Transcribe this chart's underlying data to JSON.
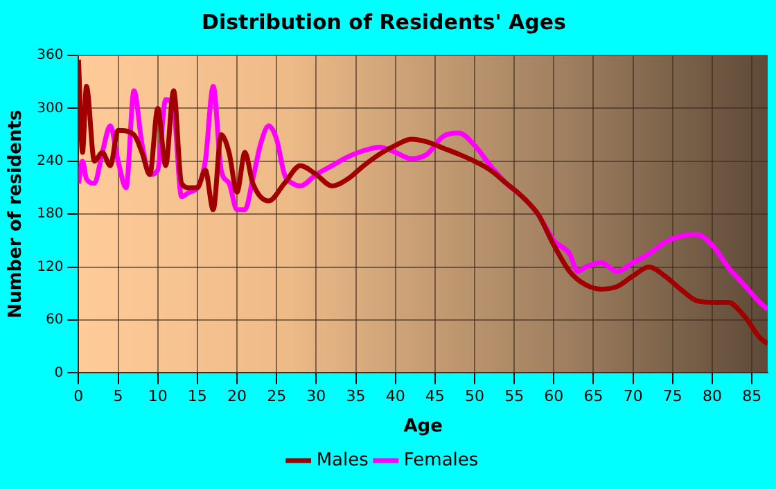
{
  "chart_data": {
    "type": "line",
    "title": "Distribution of Residents' Ages",
    "xlabel": "Age",
    "ylabel": "Number of residents",
    "xlim": [
      0,
      87
    ],
    "xticks": [
      0,
      5,
      10,
      15,
      20,
      25,
      30,
      35,
      40,
      45,
      50,
      55,
      60,
      65,
      70,
      75,
      80,
      85
    ],
    "ylim": [
      0,
      360
    ],
    "yticks": [
      0,
      60,
      120,
      180,
      240,
      300,
      360
    ],
    "grid": true,
    "legend": "bottom",
    "marker": "none",
    "line_style": "solid",
    "series": [
      {
        "name": "Males",
        "color": "#a00000",
        "x": [
          0,
          0.5,
          1,
          2,
          3,
          4,
          5,
          7,
          8,
          9,
          10,
          11,
          12,
          13,
          14,
          15,
          16,
          17,
          18,
          19,
          20,
          21,
          22,
          24,
          26,
          28,
          30,
          32,
          34,
          36,
          38,
          40,
          42,
          44,
          46,
          48,
          50,
          52,
          54,
          56,
          58,
          60,
          62,
          64,
          66,
          68,
          70,
          72,
          74,
          76,
          78,
          80,
          82,
          84,
          86,
          87
        ],
        "values": [
          355,
          250,
          325,
          240,
          250,
          235,
          275,
          270,
          250,
          225,
          300,
          235,
          320,
          215,
          210,
          210,
          230,
          185,
          270,
          250,
          205,
          250,
          215,
          195,
          215,
          235,
          225,
          212,
          220,
          235,
          248,
          258,
          265,
          262,
          255,
          248,
          240,
          230,
          215,
          200,
          180,
          145,
          115,
          100,
          95,
          98,
          110,
          120,
          110,
          95,
          82,
          80,
          80,
          65,
          40,
          33
        ]
      },
      {
        "name": "Females",
        "color": "#ff00ff",
        "x": [
          0,
          0.5,
          1,
          2,
          3,
          4,
          5,
          6,
          7,
          8,
          9,
          10,
          11,
          12,
          13,
          14,
          15,
          16,
          17,
          18,
          19,
          20,
          21,
          22,
          23,
          24,
          25,
          26,
          27,
          28,
          30,
          32,
          34,
          36,
          38,
          40,
          42,
          44,
          46,
          48,
          50,
          52,
          54,
          56,
          58,
          60,
          62,
          63,
          64,
          66,
          68,
          70,
          72,
          74,
          76,
          78,
          80,
          82,
          84,
          86,
          87
        ],
        "values": [
          215,
          240,
          220,
          215,
          250,
          280,
          240,
          210,
          320,
          260,
          225,
          230,
          310,
          300,
          200,
          205,
          210,
          240,
          325,
          230,
          215,
          185,
          185,
          220,
          260,
          280,
          265,
          225,
          215,
          212,
          225,
          235,
          245,
          252,
          256,
          250,
          243,
          248,
          268,
          272,
          258,
          235,
          215,
          200,
          180,
          150,
          135,
          115,
          120,
          125,
          115,
          125,
          135,
          148,
          155,
          157,
          145,
          120,
          100,
          80,
          72
        ]
      }
    ]
  }
}
